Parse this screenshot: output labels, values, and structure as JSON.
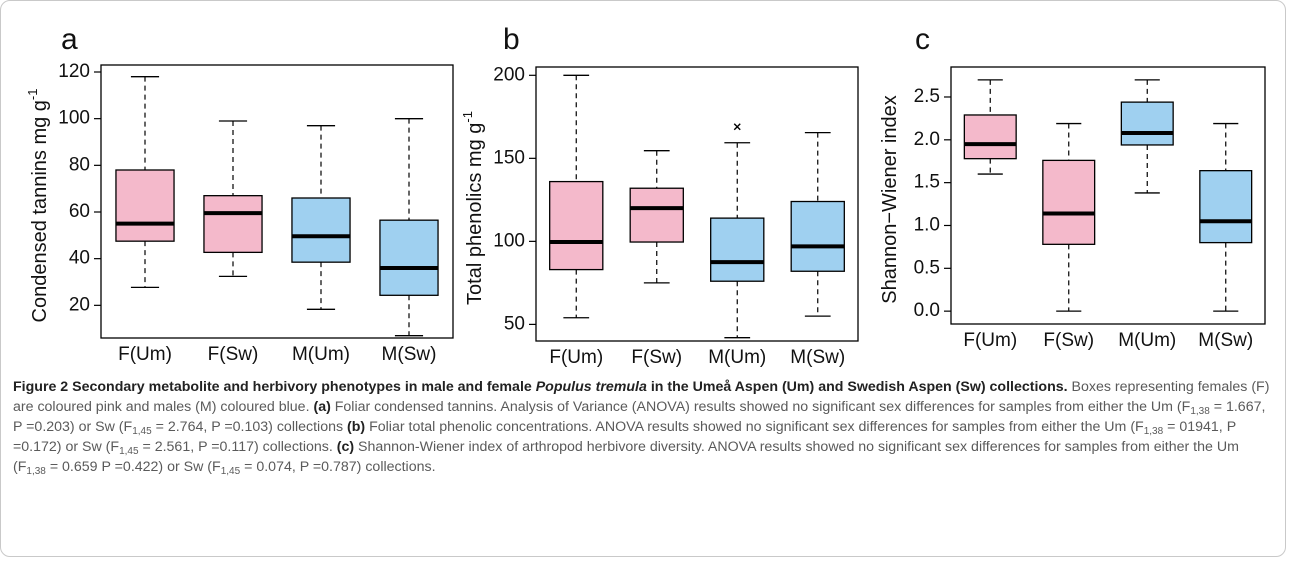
{
  "chart_data": [
    {
      "type": "box",
      "panel": "a",
      "ylabel": "Condensed tannins mg g",
      "ylabel_sup": "-1",
      "categories": [
        "F(Um)",
        "F(Sw)",
        "M(Um)",
        "M(Sw)"
      ],
      "colors": [
        "#f4b9cb",
        "#f4b9cb",
        "#9fd0f0",
        "#9fd0f0"
      ],
      "boxes": [
        {
          "whislo": 27.7,
          "q1": 47.5,
          "med": 55,
          "q3": 78,
          "whishi": 118
        },
        {
          "whislo": 32.4,
          "q1": 42.7,
          "med": 59.5,
          "q3": 67,
          "whishi": 99
        },
        {
          "whislo": 18.3,
          "q1": 38.5,
          "med": 49.6,
          "q3": 66,
          "whishi": 97
        },
        {
          "whislo": 7,
          "q1": 24.3,
          "med": 36,
          "q3": 56.5,
          "whishi": 100
        }
      ],
      "ylim": [
        6,
        123
      ],
      "yticks": [
        20,
        40,
        60,
        80,
        100,
        120
      ]
    },
    {
      "type": "box",
      "panel": "b",
      "ylabel": "Total phenolics mg g",
      "ylabel_sup": "-1",
      "categories": [
        "F(Um)",
        "F(Sw)",
        "M(Um)",
        "M(Sw)"
      ],
      "colors": [
        "#f4b9cb",
        "#f4b9cb",
        "#9fd0f0",
        "#9fd0f0"
      ],
      "boxes": [
        {
          "whislo": 54,
          "q1": 83,
          "med": 99.6,
          "q3": 136,
          "whishi": 200
        },
        {
          "whislo": 75,
          "q1": 99.6,
          "med": 120,
          "q3": 132,
          "whishi": 154.6
        },
        {
          "whislo": 42,
          "q1": 76,
          "med": 87.5,
          "q3": 114,
          "whishi": 159.4,
          "fliers": [
            169
          ]
        },
        {
          "whislo": 55,
          "q1": 82,
          "med": 97,
          "q3": 124,
          "whishi": 165.5
        }
      ],
      "ylim": [
        40,
        205
      ],
      "yticks": [
        50,
        100,
        150,
        200
      ]
    },
    {
      "type": "box",
      "panel": "c",
      "ylabel": "Shannon−Wiener index",
      "categories": [
        "F(Um)",
        "F(Sw)",
        "M(Um)",
        "M(Sw)"
      ],
      "colors": [
        "#f4b9cb",
        "#f4b9cb",
        "#9fd0f0",
        "#9fd0f0"
      ],
      "boxes": [
        {
          "whislo": 1.6,
          "q1": 1.78,
          "med": 1.95,
          "q3": 2.29,
          "whishi": 2.7
        },
        {
          "whislo": 0,
          "q1": 0.78,
          "med": 1.14,
          "q3": 1.76,
          "whishi": 2.19
        },
        {
          "whislo": 1.38,
          "q1": 1.94,
          "med": 2.08,
          "q3": 2.44,
          "whishi": 2.7
        },
        {
          "whislo": 0,
          "q1": 0.8,
          "med": 1.05,
          "q3": 1.64,
          "whishi": 2.19
        }
      ],
      "ylim": [
        -0.15,
        2.85
      ],
      "yticks": [
        {
          "value": 0,
          "label": "0.0"
        },
        0.5,
        {
          "value": 1,
          "label": "1.0"
        },
        1.5,
        {
          "value": 2,
          "label": "2.0"
        },
        2.5
      ]
    }
  ],
  "caption": [
    {
      "text": "Figure 2 Secondary metabolite and herbivory phenotypes in male and female ",
      "style": "bold"
    },
    {
      "text": "Populus tremula",
      "style": "bold-italic"
    },
    {
      "text": " in the Umeå Aspen (Um) and Swedish Aspen (Sw) collections.",
      "style": "bold"
    },
    {
      "text": " Boxes representing females (F) are coloured pink and males (M) coloured blue. ",
      "style": "normal"
    },
    {
      "text": "(a)",
      "style": "bold"
    },
    {
      "text": " Foliar condensed tannins. Analysis of Variance (ANOVA) results showed no significant sex differences for samples from either the Um (F",
      "style": "normal"
    },
    {
      "text": "1,38",
      "style": "sub"
    },
    {
      "text": " = 1.667, P =0.203) or Sw (F",
      "style": "normal"
    },
    {
      "text": "1,45",
      "style": "sub"
    },
    {
      "text": " = 2.764, P =0.103) collections ",
      "style": "normal"
    },
    {
      "text": "(b)",
      "style": "bold"
    },
    {
      "text": " Foliar total phenolic concentrations. ANOVA results showed no significant sex differences for samples from either the Um (F",
      "style": "normal"
    },
    {
      "text": "1,38",
      "style": "sub"
    },
    {
      "text": " = 01941, P =0.172) or Sw (F",
      "style": "normal"
    },
    {
      "text": "1,45",
      "style": "sub"
    },
    {
      "text": " = 2.561, P =0.117) collections. ",
      "style": "normal"
    },
    {
      "text": "(c)",
      "style": "bold"
    },
    {
      "text": " Shannon-Wiener index of arthropod herbivore diversity. ANOVA results showed no significant sex differences for samples from either the Um (F",
      "style": "normal"
    },
    {
      "text": "1,38",
      "style": "sub"
    },
    {
      "text": " = 0.659 P =0.422) or Sw (F",
      "style": "normal"
    },
    {
      "text": "1,45",
      "style": "sub"
    },
    {
      "text": " = 0.074, P =0.787) collections.",
      "style": "normal"
    }
  ]
}
